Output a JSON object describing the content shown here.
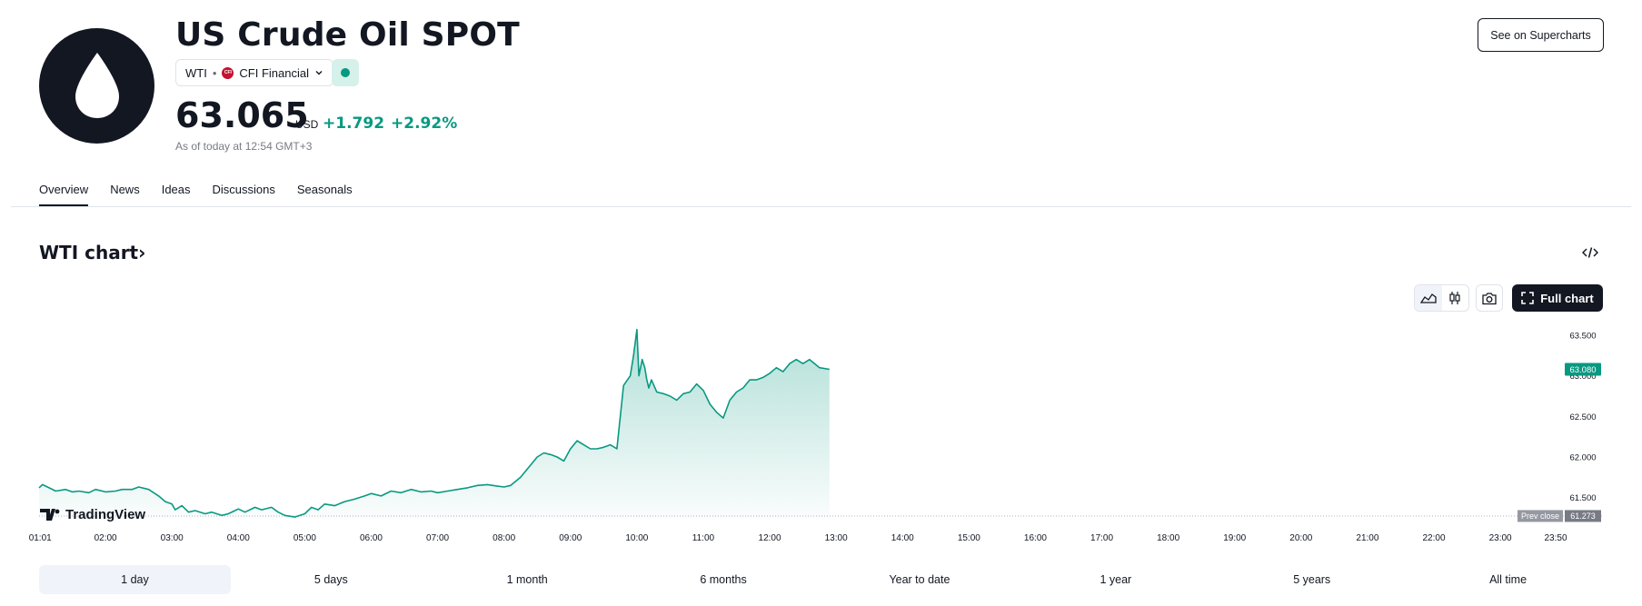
{
  "header": {
    "title": "US Crude Oil SPOT",
    "ticker": "WTI",
    "exchange": "CFI Financial",
    "exchange_badge": "CFI",
    "price": "63.065",
    "currency": "USD",
    "change_abs": "+1.792",
    "change_pct": "+2.92%",
    "as_of": "As of today at 12:54 GMT+3",
    "supercharts_label": "See on Supercharts",
    "icon": "oil-drop-icon"
  },
  "tabs": [
    {
      "label": "Overview",
      "active": true
    },
    {
      "label": "News",
      "active": false
    },
    {
      "label": "Ideas",
      "active": false
    },
    {
      "label": "Discussions",
      "active": false
    },
    {
      "label": "Seasonals",
      "active": false
    }
  ],
  "chart_section": {
    "title": "WTI chart›",
    "full_chart_label": "Full chart",
    "watermark": "TradingView"
  },
  "chart_data": {
    "type": "area",
    "x_ticks": [
      "01:01",
      "02:00",
      "03:00",
      "04:00",
      "05:00",
      "06:00",
      "07:00",
      "08:00",
      "09:00",
      "10:00",
      "11:00",
      "12:00",
      "13:00",
      "14:00",
      "15:00",
      "16:00",
      "17:00",
      "18:00",
      "19:00",
      "20:00",
      "21:00",
      "22:00",
      "23:00",
      "23:50"
    ],
    "y_ticks": [
      61.5,
      62.0,
      62.5,
      63.0,
      63.5
    ],
    "y_tick_labels": [
      "61.500",
      "62.000",
      "62.500",
      "63.000",
      "63.500"
    ],
    "ylim": [
      61.25,
      63.6
    ],
    "xlim_hours": [
      1.0,
      23.833
    ],
    "current_price": 63.08,
    "current_price_label": "63.080",
    "prev_close": 61.273,
    "prev_close_title": "Prev close",
    "prev_close_label": "61.273",
    "line_color": "#089981",
    "series": [
      {
        "x": [
          1.0,
          1.05,
          1.15,
          1.25,
          1.4,
          1.5,
          1.6,
          1.75,
          1.85,
          2.0,
          2.15,
          2.25,
          2.4,
          2.5,
          2.65,
          2.8,
          2.9,
          3.0,
          3.05,
          3.15,
          3.25,
          3.35,
          3.5,
          3.6,
          3.75,
          3.85,
          4.0,
          4.1,
          4.25,
          4.35,
          4.5,
          4.6,
          4.7,
          4.85,
          5.0,
          5.1,
          5.2,
          5.3,
          5.45,
          5.6,
          5.75,
          5.9,
          6.0,
          6.15,
          6.3,
          6.45,
          6.6,
          6.75,
          6.9,
          7.0,
          7.15,
          7.3,
          7.45,
          7.6,
          7.75,
          7.9,
          8.0,
          8.1,
          8.25,
          8.4,
          8.5,
          8.6,
          8.7,
          8.8,
          8.9,
          9.0,
          9.1,
          9.2,
          9.3,
          9.4,
          9.5,
          9.6,
          9.7,
          9.8,
          9.9,
          9.95,
          10.0,
          10.03,
          10.08,
          10.12,
          10.15,
          10.18,
          10.22,
          10.3,
          10.4,
          10.5,
          10.6,
          10.7,
          10.8,
          10.9,
          11.0,
          11.1,
          11.2,
          11.3,
          11.4,
          11.5,
          11.6,
          11.7,
          11.8,
          11.9,
          12.0,
          12.1,
          12.2,
          12.3,
          12.4,
          12.5,
          12.6,
          12.75,
          12.9
        ],
        "y": [
          61.62,
          61.66,
          61.62,
          61.58,
          61.6,
          61.57,
          61.58,
          61.56,
          61.6,
          61.57,
          61.58,
          61.6,
          61.6,
          61.63,
          61.6,
          61.52,
          61.45,
          61.42,
          61.35,
          61.4,
          61.32,
          61.34,
          61.3,
          61.32,
          61.28,
          61.3,
          61.36,
          61.32,
          61.38,
          61.35,
          61.38,
          61.32,
          61.28,
          61.26,
          61.3,
          61.38,
          61.35,
          61.42,
          61.4,
          61.45,
          61.48,
          61.52,
          61.55,
          61.52,
          61.58,
          61.56,
          61.6,
          61.57,
          61.58,
          61.56,
          61.58,
          61.6,
          61.62,
          61.65,
          61.66,
          61.64,
          61.63,
          61.65,
          61.75,
          61.9,
          62.0,
          62.05,
          62.03,
          62.0,
          61.95,
          62.1,
          62.2,
          62.15,
          62.1,
          62.1,
          62.12,
          62.15,
          62.1,
          62.88,
          63.0,
          63.25,
          63.57,
          63.0,
          63.2,
          63.1,
          62.95,
          62.85,
          62.95,
          62.8,
          62.78,
          62.75,
          62.7,
          62.78,
          62.8,
          62.9,
          62.82,
          62.65,
          62.55,
          62.48,
          62.7,
          62.8,
          62.85,
          62.95,
          62.95,
          62.98,
          63.03,
          63.1,
          63.05,
          63.15,
          63.2,
          63.15,
          63.2,
          63.1,
          63.08
        ]
      }
    ]
  },
  "ranges": [
    {
      "label": "1 day",
      "active": true
    },
    {
      "label": "5 days",
      "active": false
    },
    {
      "label": "1 month",
      "active": false
    },
    {
      "label": "6 months",
      "active": false
    },
    {
      "label": "Year to date",
      "active": false
    },
    {
      "label": "1 year",
      "active": false
    },
    {
      "label": "5 years",
      "active": false
    },
    {
      "label": "All time",
      "active": false
    }
  ]
}
